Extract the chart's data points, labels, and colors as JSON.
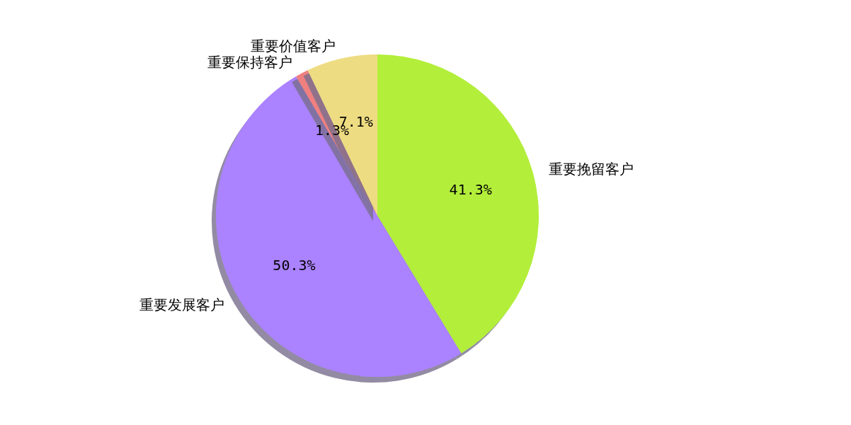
{
  "chart_data": {
    "type": "pie",
    "categories": [
      "重要挽留客户",
      "重要发展客户",
      "重要保持客户",
      "重要价值客户"
    ],
    "values": [
      41.3,
      50.3,
      1.3,
      7.1
    ],
    "value_labels": [
      "41.3%",
      "50.3%",
      "1.3%",
      "7.1%"
    ],
    "colors": [
      "#b3ee3a",
      "#ab82ff",
      "#f08080",
      "#eedc82"
    ],
    "legend": false
  }
}
